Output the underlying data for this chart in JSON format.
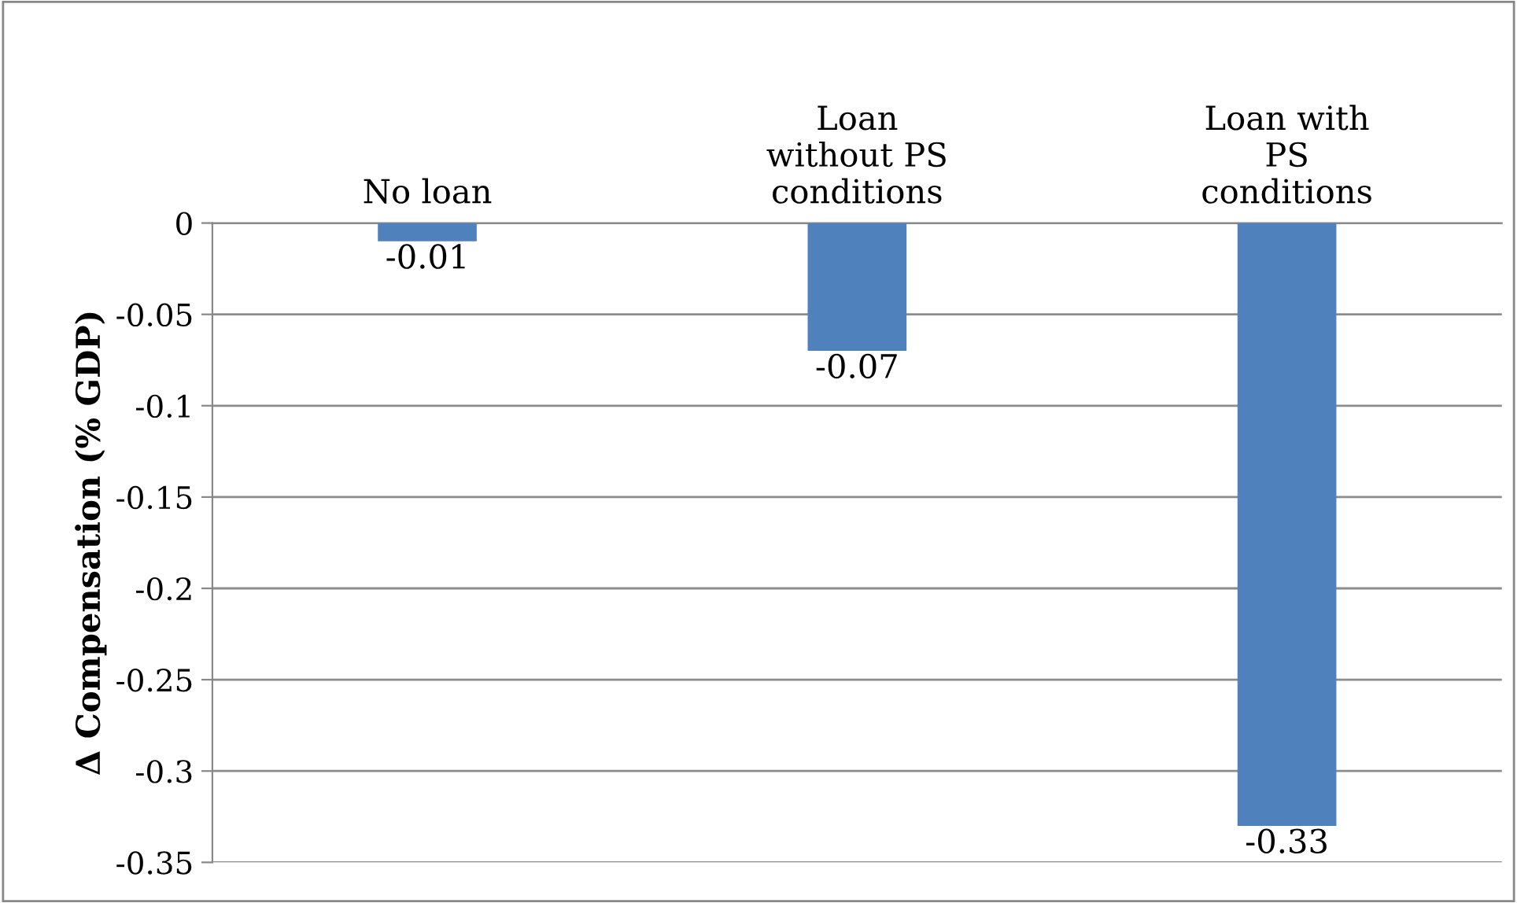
{
  "chart_data": {
    "type": "bar",
    "categories": [
      "No loan",
      "Loan\nwithout PS\nconditions",
      "Loan with\nPS\nconditions"
    ],
    "values": [
      -0.01,
      -0.07,
      -0.33
    ],
    "color": "#4f81bd",
    "ylabel": "Δ Compensation (% GDP)",
    "ylim": [
      -0.35,
      0
    ],
    "yticks": [
      0,
      -0.05,
      -0.1,
      -0.15,
      -0.2,
      -0.25,
      -0.3,
      -0.35
    ],
    "grid": "y",
    "data_labels": true
  }
}
